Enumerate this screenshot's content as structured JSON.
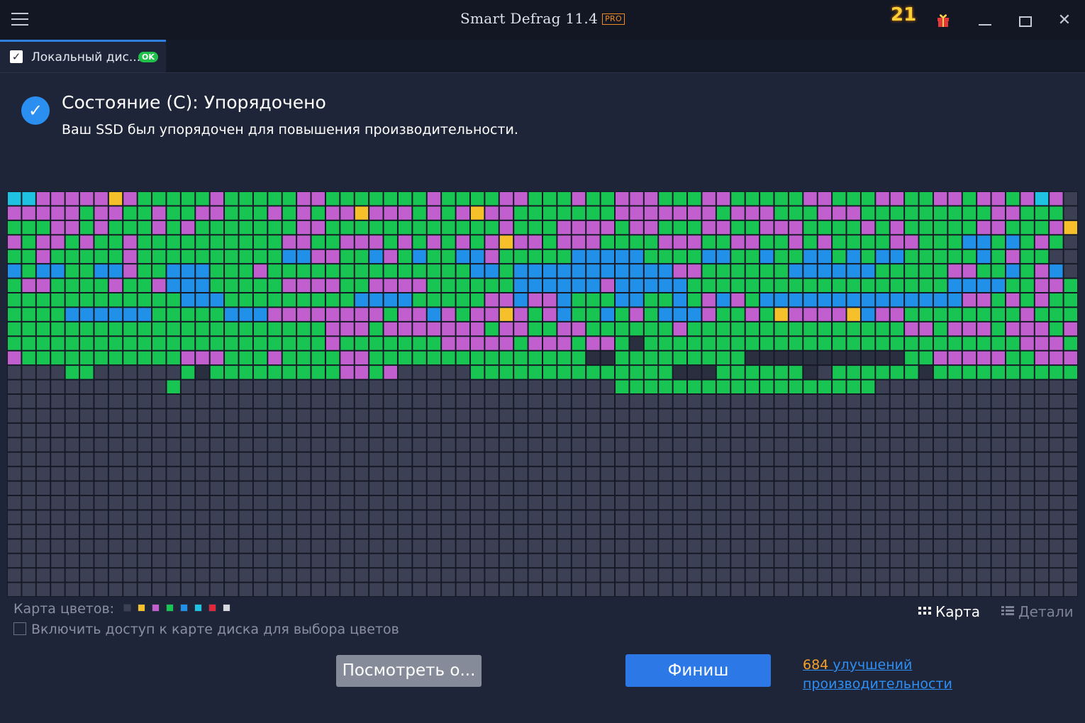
{
  "titlebar": {
    "app_name": "Smart Defrag 11.4",
    "edition_badge": "PRO",
    "promo_text": "21"
  },
  "tabs": [
    {
      "label": "Локальный дис...",
      "badge": "OK",
      "checked": true
    }
  ],
  "status": {
    "title": "Состояние (C): Упорядочено",
    "subtitle": "Ваш SSD был упорядочен для повышения производительности."
  },
  "legend": {
    "label": "Карта цветов:",
    "swatches": [
      "#3b4054",
      "#f5c02a",
      "#c25fcf",
      "#19c552",
      "#2090e8",
      "#1fc2e0",
      "#e0283a",
      "#d6d8de"
    ],
    "enable_label": "Включить доступ к карте диска для выбора цветов"
  },
  "view_toggle": {
    "map_label": "Карта",
    "details_label": "Детали"
  },
  "buttons": {
    "view_report": "Посмотреть о...",
    "finish": "Финиш"
  },
  "improvements": {
    "count": "684",
    "text": "улучшений производительности"
  },
  "disk_map": {
    "columns": 74,
    "rows": 28,
    "colors": {
      ".": "#3b4054",
      "g": "#19c552",
      "p": "#c25fcf",
      "b": "#2090e8",
      "y": "#f5c02a",
      "c": "#1fc2e0",
      "k": "#2a2f40"
    },
    "rows_data": [
      "ccpppppypgggggpgggggppgggggggpggggppgggpggpppgggppgggggppgggppggppgppgpcp",
      "pppppgppggpggppgggpgpgppypppgpgpyppgggggggpppppppgpppgggpppgggggggggppggg",
      "gggppgpgggpgpgggggggppggggggggggggpgggppppgppgggppggpppggggpgpgggggppgggpy",
      "pgppgpggpggggggggggppggpppgpgpgpgpyppgpppggggpppggppggpgpggggppgggbbgbgpg",
      "ggpgggggpggggggggggbbppggbpgbggbbpgggggbbbbbggggbbggbggbbgbgbbgggggbgpgg",
      "bgbbggbbpggbbbgggpggggggggggggggbbgbbbbbbbbbbbppggggggbbbbbbgggggppggbgpb",
      "gppggggpggpbbbgggggppppggppppggggggbbbbbbpbbbbbggggggggggggggggggbbbbggppg",
      "ggggggggggggbbbgggggggggbbbbgggggppbppbgggbbggbgpbpgbbbbbbbbbbbbbbppgpgpgg",
      "ggggbbbbbbgggggbbbppppppppgppbpgppypgpbggbgpgbbbpggpgyppppybppggggggggpgggg",
      "ggggggggggggggggggggggpppgpppppppgppggppggggggpgggggggggggggggppgpppgpppgpg",
      "ggggggggggggggggggggggpgggggggpppppgpppgppgkggggggggggggggggggggggggggpppgg",
      "pgggggggggggpppgggpggggppgggggggggggggggkkgggggggggkkkkkkkkkkkggpppppggpppp",
      "....gg......gkgggggggggppgp.....ggggggggggggggkkkggggggk.ggggggkggggggggggg..",
      "...........g..............................gggggggggggggggggg..................",
      "...........................................................................",
      "...........................................................................",
      "...........................................................................",
      "...........................................................................",
      "...........................................................................",
      "...........................................................................",
      "...........................................................................",
      "...........................................................................",
      "...........................................................................",
      "...........................................................................",
      "...........................................................................",
      "...........................................................................",
      "...........................................................................",
      "..........................................................................."
    ]
  }
}
